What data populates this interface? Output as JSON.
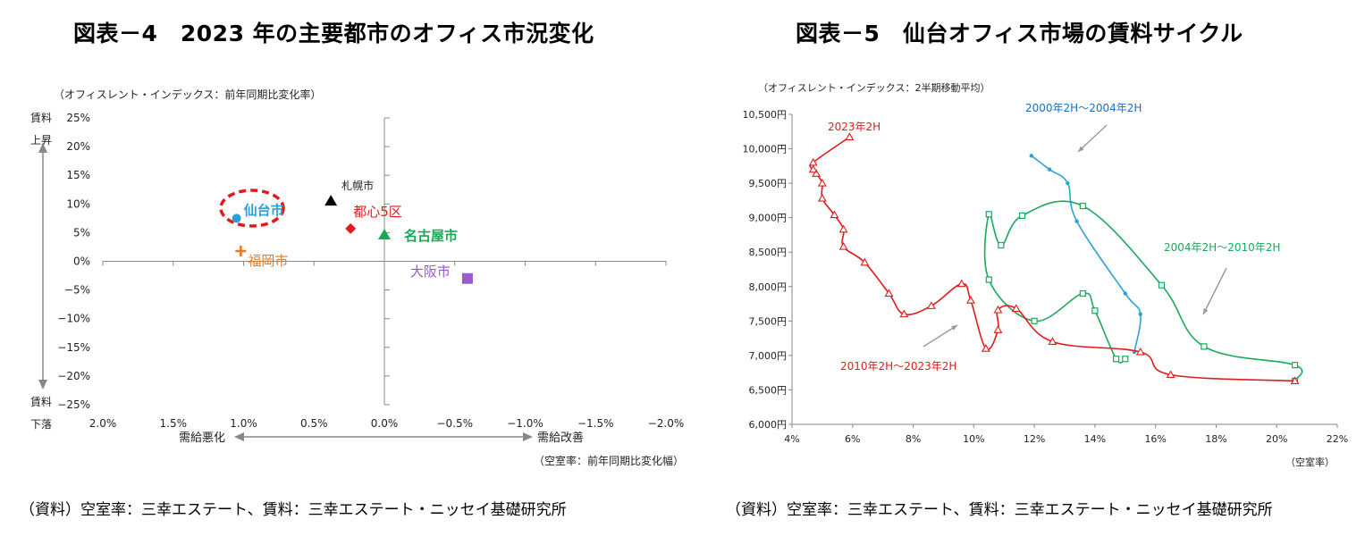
{
  "left": {
    "title": "図表－4　2023 年の主要都市のオフィス市況変化",
    "source": "（資料）空室率：三幸エステート、賃料：三幸エステート・ニッセイ基礎研究所",
    "chart_data": {
      "type": "scatter",
      "ylabel": "（オフィスレント・インデックス：前年同期比変化率）",
      "xlabel": "（空室率：前年同期比変化幅）",
      "y_axis_top_label": [
        "賃料",
        "上昇"
      ],
      "y_axis_bottom_label": [
        "賃料",
        "下落"
      ],
      "x_arrow_left_label": "需給悪化",
      "x_arrow_right_label": "需給改善",
      "xlim": [
        2.0,
        -2.0
      ],
      "ylim": [
        -25,
        25
      ],
      "x_ticks": [
        "2.0%",
        "1.5%",
        "1.0%",
        "0.5%",
        "0.0%",
        "−0.5%",
        "−1.0%",
        "−1.5%",
        "−2.0%"
      ],
      "x_tick_values": [
        2.0,
        1.5,
        1.0,
        0.5,
        0.0,
        -0.5,
        -1.0,
        -1.5,
        -2.0
      ],
      "y_ticks": [
        "25%",
        "20%",
        "15%",
        "10%",
        "5%",
        "0%",
        "−5%",
        "−10%",
        "−15%",
        "−20%",
        "−25%"
      ],
      "y_tick_values": [
        25,
        20,
        15,
        10,
        5,
        0,
        -5,
        -10,
        -15,
        -20,
        -25
      ],
      "points": [
        {
          "name": "仙台市",
          "x": 1.05,
          "y": 7.5,
          "color": "#2e9fd9",
          "marker": "circle"
        },
        {
          "name": "札幌市",
          "x": 0.38,
          "y": 10.5,
          "color": "#000000",
          "marker": "triangle"
        },
        {
          "name": "都心5区",
          "x": 0.24,
          "y": 5.7,
          "color": "#e31a1c",
          "marker": "diamond"
        },
        {
          "name": "名古屋市",
          "x": 0.0,
          "y": 4.6,
          "color": "#1aa85a",
          "marker": "triangle"
        },
        {
          "name": "福岡市",
          "x": 1.02,
          "y": 1.8,
          "color": "#e07b26",
          "marker": "plus"
        },
        {
          "name": "大阪市",
          "x": -0.59,
          "y": -3.0,
          "color": "#9b59d0",
          "marker": "square"
        }
      ]
    }
  },
  "right": {
    "title": "図表－5　仙台オフィス市場の賃料サイクル",
    "source": "（資料）空室率：三幸エステート、賃料：三幸エステート・ニッセイ基礎研究所",
    "chart_data": {
      "type": "line",
      "ylabel": "（オフィスレント・インデックス：2半期移動平均）",
      "xlabel": "（空室率）",
      "xlim": [
        4,
        22
      ],
      "ylim": [
        6000,
        10500
      ],
      "x_ticks": [
        "4%",
        "6%",
        "8%",
        "10%",
        "12%",
        "14%",
        "16%",
        "18%",
        "20%",
        "22%"
      ],
      "x_tick_values": [
        4,
        6,
        8,
        10,
        12,
        14,
        16,
        18,
        20,
        22
      ],
      "y_ticks": [
        "10,500円",
        "10,000円",
        "9,500円",
        "9,000円",
        "8,500円",
        "8,000円",
        "7,500円",
        "7,000円",
        "6,500円",
        "6,000円"
      ],
      "y_tick_values": [
        10500,
        10000,
        9500,
        9000,
        8500,
        8000,
        7500,
        7000,
        6500,
        6000
      ],
      "series": [
        {
          "name": "2000年2H～2004年2H",
          "color": "#29a3d8",
          "marker": "star",
          "points": [
            [
              11.9,
              9900
            ],
            [
              12.5,
              9700
            ],
            [
              13.1,
              9500
            ],
            [
              13.4,
              8950
            ],
            [
              15.0,
              7900
            ],
            [
              15.5,
              7600
            ],
            [
              15.3,
              7050
            ]
          ]
        },
        {
          "name": "2004年2H～2010年2H",
          "color": "#1aa85a",
          "marker": "square",
          "points": [
            [
              15.0,
              6950
            ],
            [
              14.7,
              6950
            ],
            [
              14.0,
              7650
            ],
            [
              13.6,
              7900
            ],
            [
              12.0,
              7500
            ],
            [
              10.5,
              8100
            ],
            [
              10.5,
              9050
            ],
            [
              10.9,
              8600
            ],
            [
              11.6,
              9030
            ],
            [
              13.6,
              9170
            ],
            [
              16.2,
              8020
            ],
            [
              17.6,
              7130
            ],
            [
              20.6,
              6860
            ],
            [
              20.6,
              6630
            ]
          ]
        },
        {
          "name": "2010年2H～2023年2H",
          "color": "#e31a1c",
          "marker": "triangle",
          "points": [
            [
              20.6,
              6630
            ],
            [
              16.5,
              6720
            ],
            [
              15.5,
              7050
            ],
            [
              12.6,
              7200
            ],
            [
              11.4,
              7680
            ],
            [
              10.8,
              7660
            ],
            [
              10.8,
              7370
            ],
            [
              10.4,
              7100
            ],
            [
              9.9,
              7800
            ],
            [
              9.6,
              8040
            ],
            [
              8.6,
              7720
            ],
            [
              7.7,
              7600
            ],
            [
              7.2,
              7900
            ],
            [
              6.4,
              8350
            ],
            [
              5.7,
              8580
            ],
            [
              5.7,
              8830
            ],
            [
              5.4,
              9040
            ],
            [
              5.0,
              9280
            ],
            [
              5.0,
              9500
            ],
            [
              4.8,
              9640
            ],
            [
              4.7,
              9700
            ],
            [
              4.7,
              9800
            ],
            [
              5.9,
              10170
            ]
          ]
        }
      ],
      "annotations": [
        {
          "text": "2023年2H",
          "color": "#e31a1c"
        },
        {
          "text": "2000年2H～2004年2H",
          "color": "#1a6fc0"
        },
        {
          "text": "2004年2H～2010年2H",
          "color": "#1aa85a"
        },
        {
          "text": "2010年2H～2023年2H",
          "color": "#e31a1c"
        }
      ]
    }
  }
}
